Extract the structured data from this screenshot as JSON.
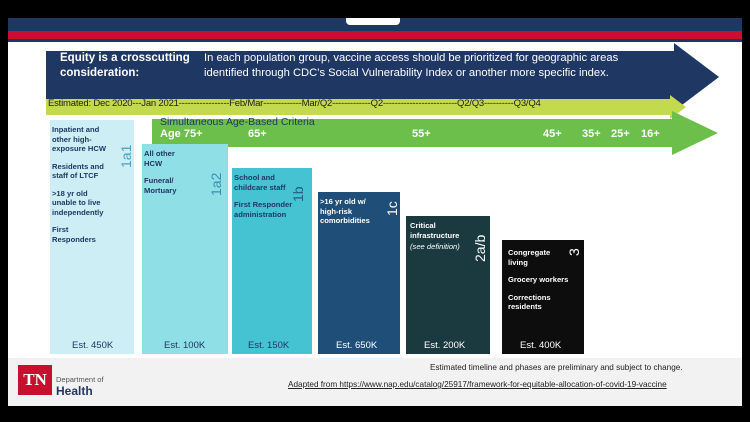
{
  "equity": {
    "heading_line1": "Equity is a crosscutting",
    "heading_line2": "consideration:",
    "body_line1": "In each population group, vaccine access should be prioritized for geographic areas",
    "body_line2": "identified through CDC’s Social Vulnerability Index or another more specific index."
  },
  "timeline": {
    "text": "Estimated: Dec 2020---Jan 2021-----------------Feb/Mar-------------Mar/Q2-------------Q2-------------------------Q2/Q3----------Q3/Q4"
  },
  "age_criteria": {
    "title": "Simultaneous Age-Based Criteria",
    "ages": [
      "Age 75+",
      "65+",
      "55+",
      "45+",
      "35+",
      "25+",
      "16+"
    ]
  },
  "phases": [
    {
      "code": "1a1",
      "lines": [
        "Inpatient and",
        "other high-",
        "exposure HCW",
        "",
        "Residents and",
        "staff of LTCF",
        "",
        ">18 yr old",
        "unable to live",
        "independently",
        "",
        "First",
        "Responders"
      ],
      "estimate": "Est. 450K"
    },
    {
      "code": "1a2",
      "lines": [
        "All other",
        "HCW",
        "",
        "Funeral/",
        "Mortuary"
      ],
      "estimate": "Est. 100K"
    },
    {
      "code": "1b",
      "lines": [
        "School and",
        "childcare staff",
        "",
        "First Responder",
        "administration"
      ],
      "estimate": "Est. 150K"
    },
    {
      "code": "1c",
      "lines": [
        ">16 yr old w/",
        "high-risk",
        "comorbidities"
      ],
      "estimate": "Est. 650K"
    },
    {
      "code": "2a/b",
      "lines": [
        "Critical",
        "infrastructure",
        "(see definition)"
      ],
      "estimate": "Est. 200K"
    },
    {
      "code": "3",
      "lines": [
        "Congregate",
        "living",
        "",
        "Grocery workers",
        "",
        "Corrections",
        "residents"
      ],
      "estimate": "Est. 400K"
    }
  ],
  "colors": {
    "navy": "#1f3763",
    "lime": "#c3d94e",
    "green": "#6dbf4b",
    "phase1a1": "#cdeef5",
    "phase1a2": "#8fdfe6",
    "phase1b": "#45c3d3",
    "phase1c": "#1f4e79",
    "phase2": "#1a3a40",
    "phase3": "#0d0d0d"
  },
  "footer": {
    "logo": "TN",
    "dept": "Department of",
    "health": "Health",
    "note": "Estimated timeline and phases are preliminary and subject to change.",
    "source": "Adapted from https://www.nap.edu/catalog/25917/framework-for-equitable-allocation-of-covid-19-vaccine"
  }
}
